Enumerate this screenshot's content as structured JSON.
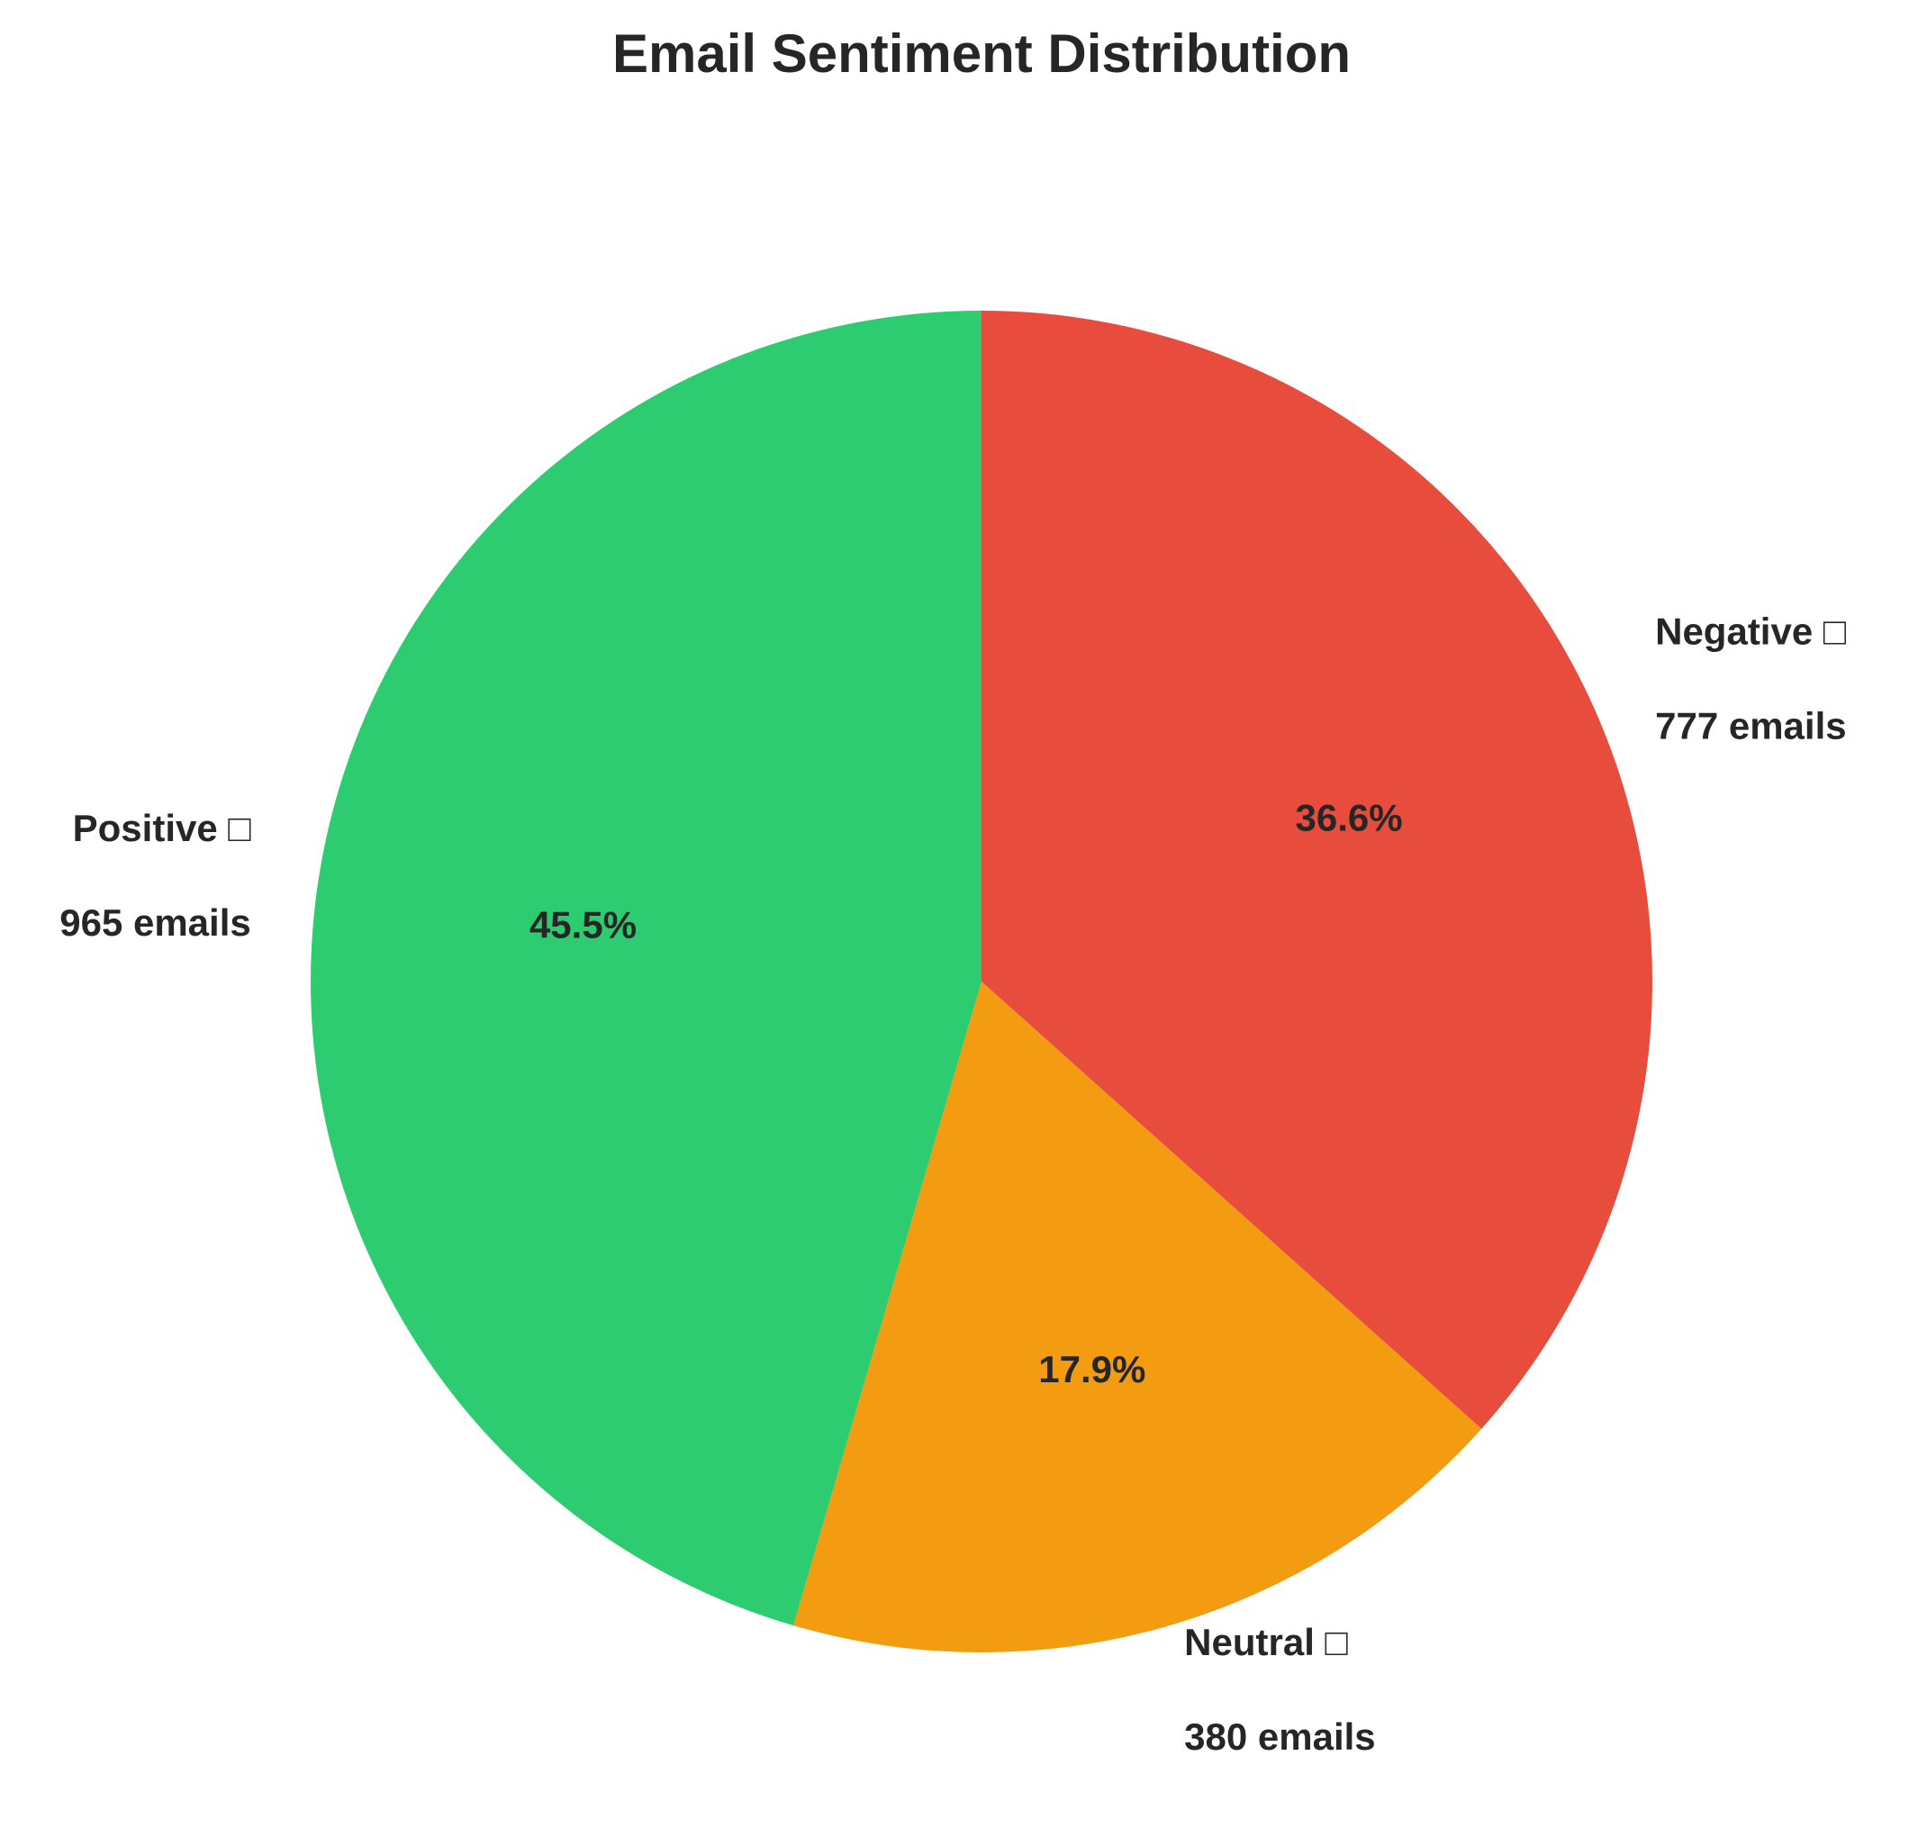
{
  "chart_data": {
    "type": "pie",
    "title": "Email Sentiment Distribution",
    "start_angle_deg": 90,
    "direction": "clockwise",
    "slices": [
      {
        "name": "Negative",
        "label": "Negative □",
        "value": 777,
        "count_label": "777 emails",
        "percent": 36.6,
        "percent_label": "36.6%",
        "color": "#e74c3c"
      },
      {
        "name": "Neutral",
        "label": "Neutral □",
        "value": 380,
        "count_label": "380 emails",
        "percent": 17.9,
        "percent_label": "17.9%",
        "color": "#f39c12"
      },
      {
        "name": "Positive",
        "label": "Positive □",
        "value": 965,
        "count_label": "965 emails",
        "percent": 45.5,
        "percent_label": "45.5%",
        "color": "#2ecc71"
      }
    ]
  }
}
